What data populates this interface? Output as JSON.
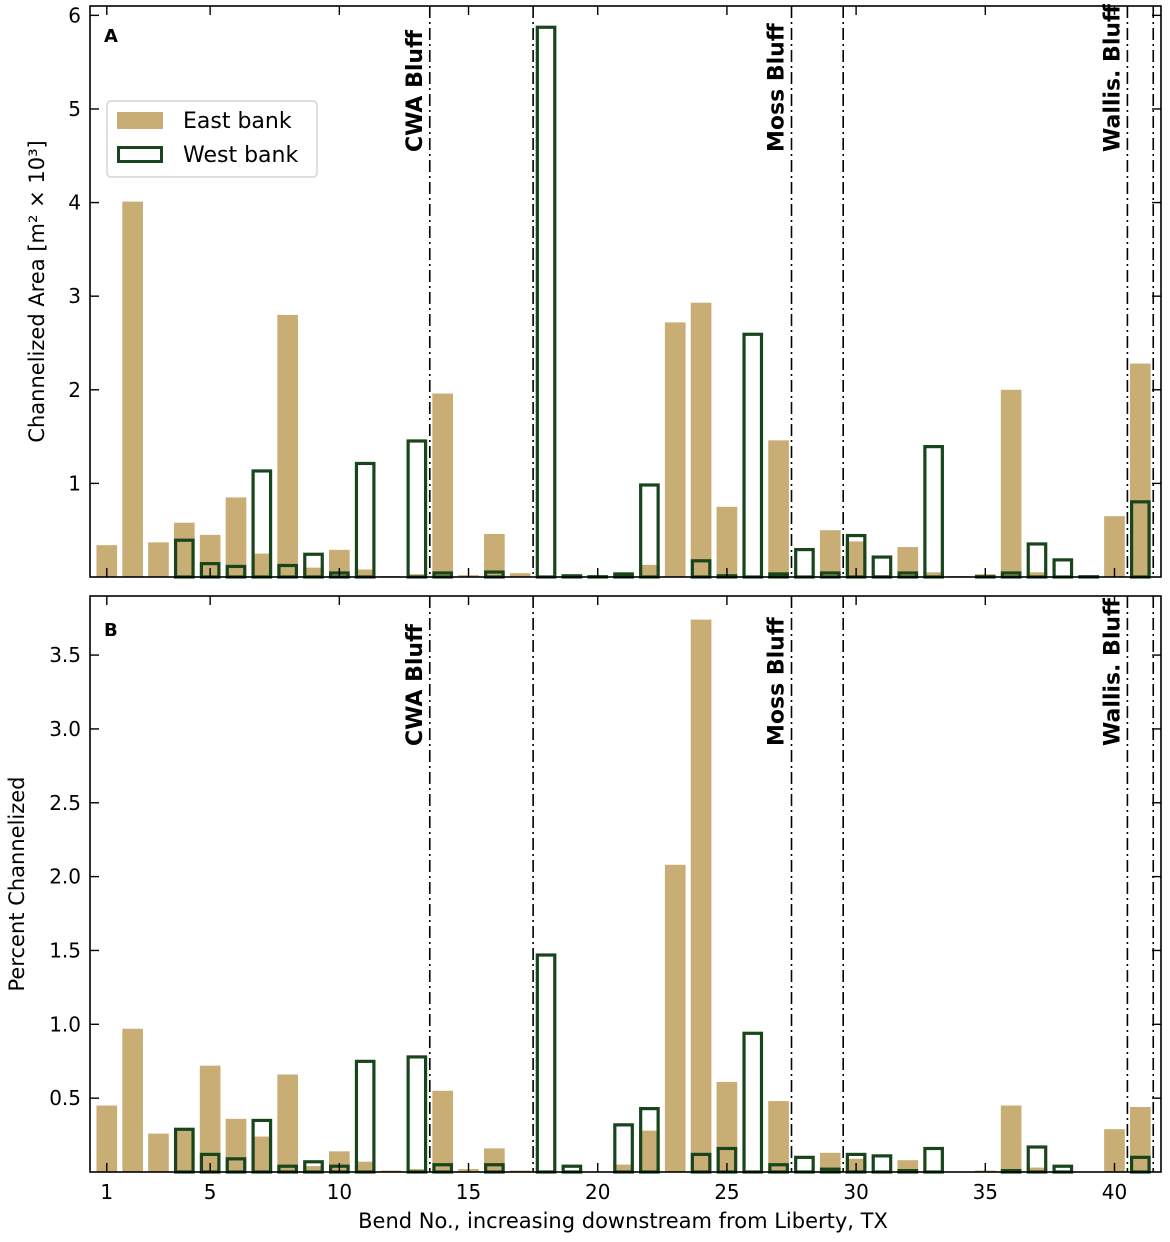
{
  "colors": {
    "east": "#c8ae74",
    "west": "#18451c"
  },
  "chart_data": [
    {
      "type": "bar",
      "panel": "A",
      "ylabel": "Channelized Area [m² × 10³]",
      "ylim": [
        0,
        6.1
      ],
      "yticks": [
        1,
        2,
        3,
        4,
        5,
        6
      ],
      "x": [
        1,
        2,
        3,
        4,
        5,
        6,
        7,
        8,
        9,
        10,
        11,
        12,
        13,
        14,
        15,
        16,
        17,
        18,
        19,
        20,
        21,
        22,
        23,
        24,
        25,
        26,
        27,
        28,
        29,
        30,
        31,
        32,
        33,
        34,
        35,
        36,
        37,
        38,
        39,
        40,
        41
      ],
      "series": [
        {
          "name": "East bank",
          "style": "filled",
          "values": [
            0.34,
            4.01,
            0.37,
            0.58,
            0.45,
            0.85,
            0.25,
            2.8,
            0.1,
            0.29,
            0.08,
            0.01,
            0.03,
            1.96,
            0.02,
            0.46,
            0.04,
            0.0,
            0.01,
            0.0,
            0.03,
            0.13,
            2.72,
            2.93,
            0.75,
            0.0,
            1.46,
            0.01,
            0.5,
            0.38,
            0.02,
            0.32,
            0.05,
            0.01,
            0.03,
            2.0,
            0.05,
            0.01,
            0.0,
            0.65,
            2.28
          ]
        },
        {
          "name": "West bank",
          "style": "outline",
          "values": [
            0.0,
            0.0,
            0.0,
            0.41,
            0.16,
            0.13,
            1.15,
            0.14,
            0.26,
            0.06,
            1.23,
            0.01,
            1.47,
            0.06,
            0.0,
            0.07,
            0.0,
            5.89,
            0.03,
            0.02,
            0.05,
            1.0,
            0.0,
            0.19,
            0.03,
            2.61,
            0.05,
            0.31,
            0.06,
            0.46,
            0.23,
            0.06,
            1.41,
            0.01,
            0.02,
            0.06,
            0.37,
            0.2,
            0.02,
            0.0,
            0.82
          ]
        }
      ],
      "vlines": [
        13.5,
        17.5,
        27.5,
        29.5,
        40.5,
        41.5
      ],
      "bluff_labels": [
        {
          "text": "CWA Bluff",
          "x": 13.5
        },
        {
          "text": "Moss Bluff",
          "x": 27.5
        },
        {
          "text": "Wallis. Bluff",
          "x": 40.5
        }
      ],
      "legend": [
        "East bank",
        "West bank"
      ],
      "legend_position": "upper-left"
    },
    {
      "type": "bar",
      "panel": "B",
      "ylabel": "Percent Channelized",
      "ylim": [
        0,
        3.9
      ],
      "yticks": [
        0.5,
        1.0,
        1.5,
        2.0,
        2.5,
        3.0,
        3.5
      ],
      "x": [
        1,
        2,
        3,
        4,
        5,
        6,
        7,
        8,
        9,
        10,
        11,
        12,
        13,
        14,
        15,
        16,
        17,
        18,
        19,
        20,
        21,
        22,
        23,
        24,
        25,
        26,
        27,
        28,
        29,
        30,
        31,
        32,
        33,
        34,
        35,
        36,
        37,
        38,
        39,
        40,
        41
      ],
      "series": [
        {
          "name": "East bank",
          "style": "filled",
          "values": [
            0.45,
            0.97,
            0.26,
            0.28,
            0.72,
            0.36,
            0.24,
            0.66,
            0.04,
            0.14,
            0.07,
            0.01,
            0.02,
            0.55,
            0.02,
            0.16,
            0.01,
            0.0,
            0.0,
            0.0,
            0.05,
            0.28,
            2.08,
            3.74,
            0.61,
            0.0,
            0.48,
            0.01,
            0.13,
            0.09,
            0.01,
            0.08,
            0.01,
            0.0,
            0.01,
            0.45,
            0.03,
            0.0,
            0.0,
            0.29,
            0.44
          ]
        },
        {
          "name": "West bank",
          "style": "outline",
          "values": [
            0.0,
            0.0,
            0.0,
            0.3,
            0.13,
            0.1,
            0.36,
            0.05,
            0.08,
            0.05,
            0.76,
            0.01,
            0.79,
            0.06,
            0.0,
            0.06,
            0.0,
            1.48,
            0.05,
            0.01,
            0.33,
            0.44,
            0.0,
            0.13,
            0.17,
            0.95,
            0.06,
            0.11,
            0.03,
            0.13,
            0.12,
            0.02,
            0.17,
            0.01,
            0.01,
            0.02,
            0.18,
            0.05,
            0.01,
            0.0,
            0.11
          ]
        }
      ],
      "vlines": [
        13.5,
        17.5,
        27.5,
        29.5,
        40.5,
        41.5
      ],
      "bluff_labels": [
        {
          "text": "CWA Bluff",
          "x": 13.5
        },
        {
          "text": "Moss Bluff",
          "x": 27.5
        },
        {
          "text": "Wallis. Bluff",
          "x": 40.5
        }
      ]
    }
  ],
  "xaxis": {
    "label": "Bend No., increasing downstream from Liberty, TX",
    "ticks": [
      1,
      5,
      10,
      15,
      20,
      25,
      30,
      35,
      40
    ],
    "xlim": [
      0.35,
      41.8
    ]
  }
}
